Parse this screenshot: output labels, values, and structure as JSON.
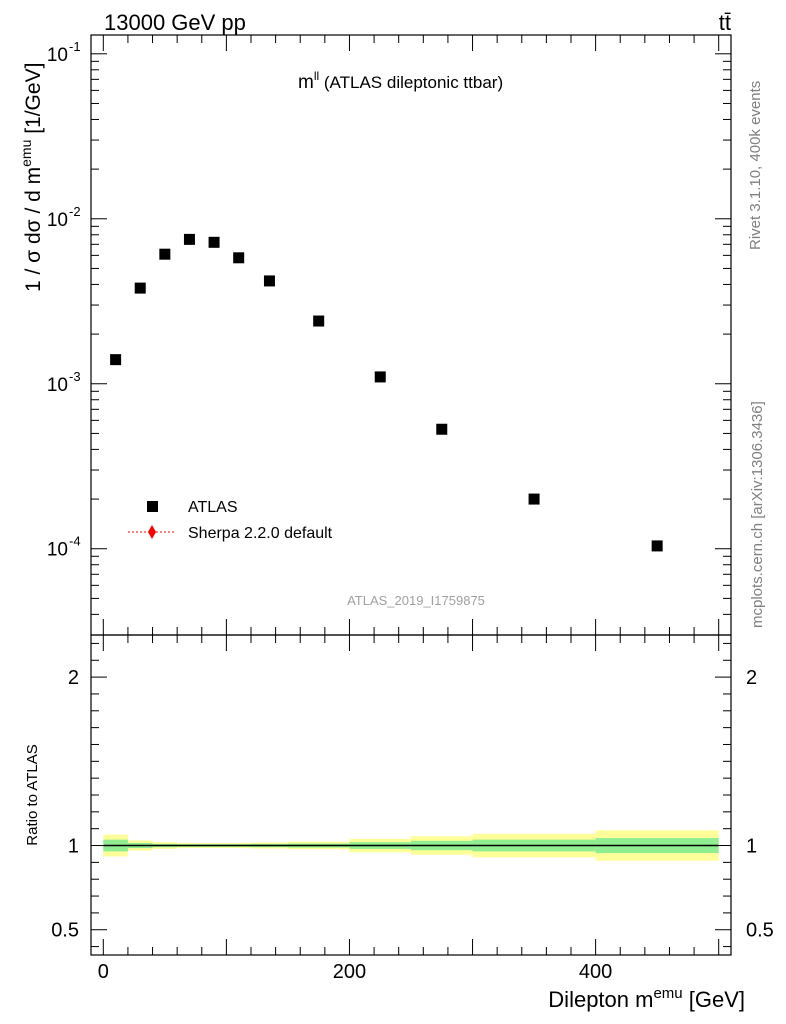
{
  "header": {
    "energy_label": "13000 GeV pp",
    "process_label": "tt̄"
  },
  "side_labels": {
    "rivet": "Rivet 3.1.10,  400k events",
    "source": "mcplots.cern.ch [arXiv:1306.3436]"
  },
  "watermark": "ATLAS_2019_I1759875",
  "chart_data": [
    {
      "type": "scatter",
      "title_main": "m",
      "title_sup": "ll",
      "title_rest": " (ATLAS dileptonic ttbar)",
      "ylabel": "1 / σ  dσ / d m^emu [1/GeV]",
      "ylabel_parts": {
        "prefix": "1 / σ  dσ / d m",
        "sup": "emu",
        "suffix": " [1/GeV]"
      },
      "yscale": "log",
      "ylim": [
        3e-05,
        0.13
      ],
      "xlim": [
        -10,
        510
      ],
      "y_tick_labels": [
        "10",
        "10",
        "10",
        "10"
      ],
      "y_tick_exponents": [
        "-4",
        "-3",
        "-2",
        "-1"
      ],
      "y_tick_values": [
        0.0001,
        0.001,
        0.01,
        0.1
      ],
      "legend": [
        {
          "label": "ATLAS",
          "marker": "square",
          "color": "#000000"
        },
        {
          "label": "Sherpa 2.2.0 default",
          "marker": "diamond",
          "color": "#ff0000",
          "line": "dotted"
        }
      ],
      "series": [
        {
          "name": "ATLAS",
          "x": [
            10,
            30,
            50,
            70,
            90,
            110,
            135,
            175,
            225,
            275,
            350,
            450
          ],
          "y": [
            0.0014,
            0.0038,
            0.0061,
            0.0075,
            0.0072,
            0.0058,
            0.0042,
            0.0024,
            0.0011,
            0.00053,
            0.0002,
            0.000104
          ]
        }
      ]
    },
    {
      "type": "area",
      "ylabel": "Ratio to ATLAS",
      "xlabel": "Dilepton m^emu [GeV]",
      "xlabel_parts": {
        "prefix": "Dilepton m",
        "sup": "emu",
        "suffix": " [GeV]"
      },
      "xlim": [
        -10,
        510
      ],
      "ylim": [
        0.35,
        2.25
      ],
      "x_tick_labels": [
        "0",
        "200",
        "400"
      ],
      "x_tick_values": [
        0,
        200,
        400
      ],
      "y_tick_labels": [
        "0.5",
        "1",
        "2"
      ],
      "y_tick_values": [
        0.5,
        1,
        2
      ],
      "bins": {
        "edges": [
          0,
          20,
          40,
          60,
          80,
          100,
          120,
          150,
          200,
          250,
          300,
          400,
          500
        ],
        "green_half": [
          0.035,
          0.015,
          0.01,
          0.008,
          0.008,
          0.008,
          0.01,
          0.012,
          0.02,
          0.028,
          0.035,
          0.045
        ],
        "yellow_half": [
          0.065,
          0.03,
          0.02,
          0.015,
          0.015,
          0.015,
          0.018,
          0.022,
          0.04,
          0.055,
          0.07,
          0.09
        ]
      },
      "reference_value": 1
    }
  ],
  "colors": {
    "green_band": "#90ee90",
    "yellow_band": "#ffff99",
    "sherpa": "#ff0000",
    "atlas": "#000000",
    "side_text": "#808080",
    "watermark": "#a0a0a0"
  }
}
